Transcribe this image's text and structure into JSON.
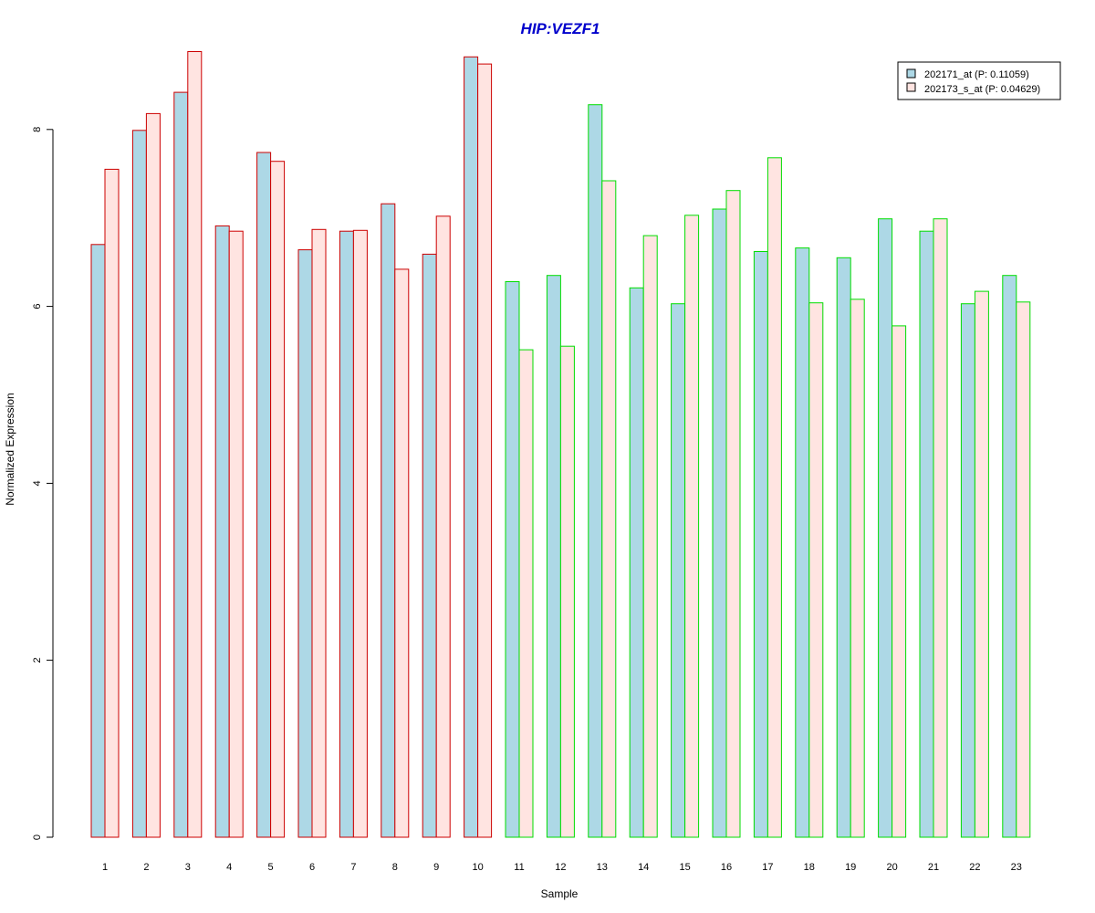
{
  "chart_data": {
    "type": "bar",
    "title": "HIP:VEZF1",
    "xlabel": "Sample",
    "ylabel": "Normalized Expression",
    "categories": [
      "1",
      "2",
      "3",
      "4",
      "5",
      "6",
      "7",
      "8",
      "9",
      "10",
      "11",
      "12",
      "13",
      "14",
      "15",
      "16",
      "17",
      "18",
      "19",
      "20",
      "21",
      "22",
      "23"
    ],
    "series": [
      {
        "name": "202171_at (P: 0.11059)",
        "fill": "#add8e6",
        "values": [
          6.7,
          7.99,
          8.42,
          6.91,
          7.74,
          6.64,
          6.85,
          7.16,
          6.59,
          8.82,
          6.28,
          6.35,
          8.28,
          6.21,
          6.03,
          7.1,
          6.62,
          6.66,
          6.55,
          6.99,
          6.85,
          6.03,
          6.35
        ]
      },
      {
        "name": "202173_s_at (P: 0.04629)",
        "fill": "#ffe4e1",
        "values": [
          7.55,
          8.18,
          8.88,
          6.85,
          7.64,
          6.87,
          6.86,
          6.42,
          7.02,
          8.74,
          5.51,
          5.55,
          7.42,
          6.8,
          7.03,
          7.31,
          7.68,
          6.04,
          6.08,
          5.78,
          6.99,
          6.17,
          6.05
        ]
      }
    ],
    "group_border_colors": [
      "#cc0000",
      "#cc0000",
      "#cc0000",
      "#cc0000",
      "#cc0000",
      "#cc0000",
      "#cc0000",
      "#cc0000",
      "#cc0000",
      "#cc0000",
      "#00dd00",
      "#00dd00",
      "#00dd00",
      "#00dd00",
      "#00dd00",
      "#00dd00",
      "#00dd00",
      "#00dd00",
      "#00dd00",
      "#00dd00",
      "#00dd00",
      "#00dd00",
      "#00dd00"
    ],
    "yticks": [
      "0",
      "2",
      "4",
      "6",
      "8"
    ],
    "ylim": [
      0,
      8.88
    ],
    "legend": "top-right",
    "grid": false,
    "title_color": "#0000cc"
  }
}
